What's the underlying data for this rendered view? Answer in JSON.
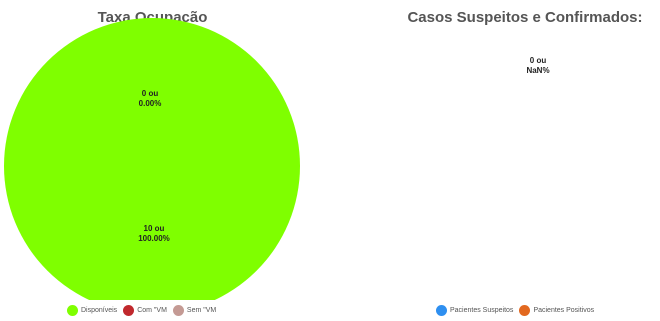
{
  "chart_data": [
    {
      "type": "pie",
      "title": "Taxa Ocupação",
      "categories": [
        "Disponíveis",
        "Com \"VM",
        "Sem \"VM"
      ],
      "values": [
        10,
        0,
        0
      ],
      "colors": [
        "#7fff00",
        "#c0282d",
        "#c49a94"
      ],
      "data_labels": [
        {
          "category": "Disponíveis",
          "line1": "10 ou",
          "line2": "100.00%"
        },
        {
          "category": "Com \"VM",
          "line1": "0 ou",
          "line2": "0.00%"
        }
      ],
      "legend_position": "bottom"
    },
    {
      "type": "pie",
      "title": "Casos Suspeitos e Confirmados:",
      "categories": [
        "Pacientes Suspeitos",
        "Pacientes Positivos"
      ],
      "values": [
        0,
        0
      ],
      "colors": [
        "#2e8ff0",
        "#e2681f"
      ],
      "data_labels": [
        {
          "category": "",
          "line1": "0 ou",
          "line2": "NaN%"
        }
      ],
      "legend_position": "bottom"
    }
  ]
}
